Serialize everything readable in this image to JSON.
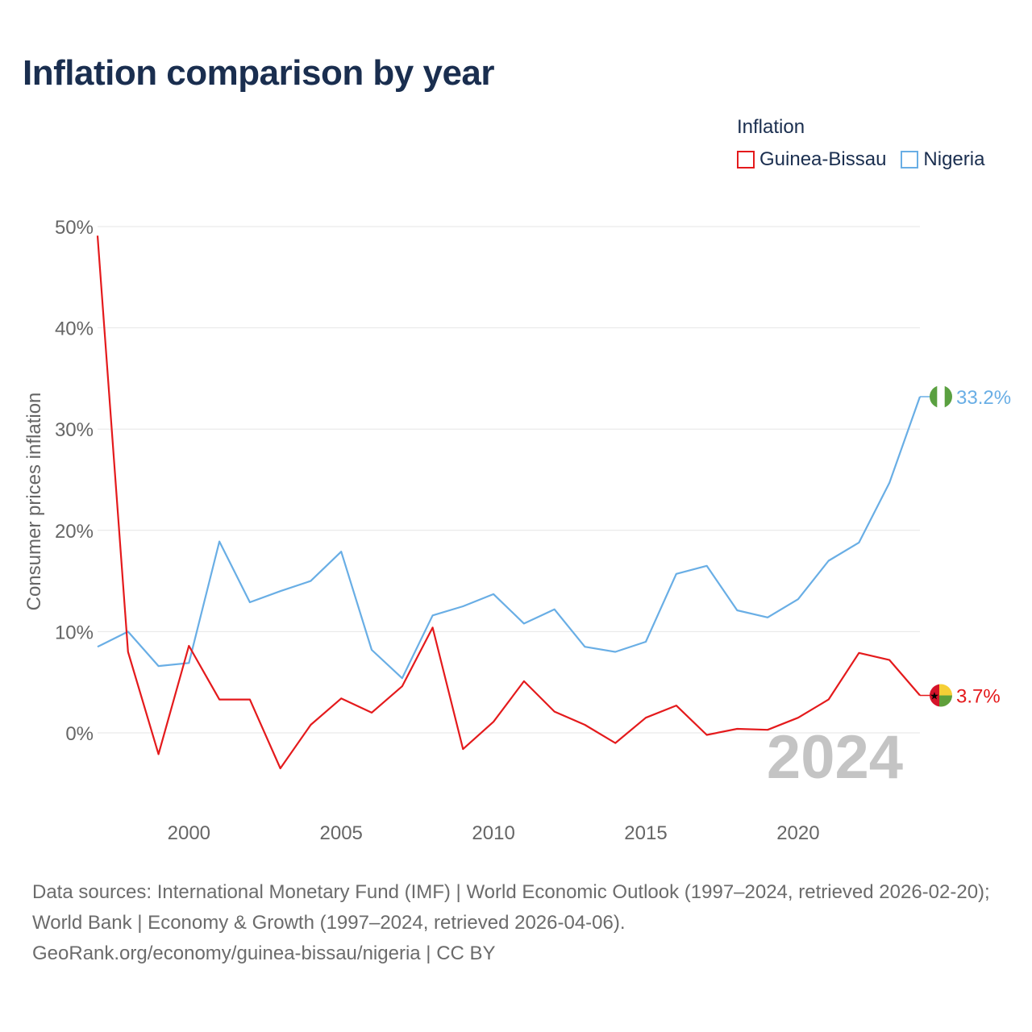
{
  "title": "Inflation comparison by year",
  "legend": {
    "title": "Inflation",
    "items": [
      "Guinea-Bissau",
      "Nigeria"
    ]
  },
  "footer": {
    "sources": "Data sources: International Monetary Fund (IMF) | World Economic Outlook (1997–2024, retrieved 2026-02-20); World Bank | Economy & Growth (1997–2024, retrieved 2026-04-06).",
    "credit": "GeoRank.org/economy/guinea-bissau/nigeria | CC BY"
  },
  "chart_data": {
    "type": "line",
    "title": "Inflation comparison by year",
    "xlabel": "",
    "ylabel": "Consumer prices inflation",
    "x": [
      1997,
      1998,
      1999,
      2000,
      2001,
      2002,
      2003,
      2004,
      2005,
      2006,
      2007,
      2008,
      2009,
      2010,
      2011,
      2012,
      2013,
      2014,
      2015,
      2016,
      2017,
      2018,
      2019,
      2020,
      2021,
      2022,
      2023,
      2024
    ],
    "xlim": [
      1997,
      2024
    ],
    "ylim": [
      -8,
      50
    ],
    "yticks": [
      0,
      10,
      20,
      30,
      40,
      50
    ],
    "ytick_labels": [
      "0%",
      "10%",
      "20%",
      "30%",
      "40%",
      "50%"
    ],
    "xticks": [
      2000,
      2005,
      2010,
      2015,
      2020
    ],
    "xtick_labels": [
      "2000",
      "2005",
      "2010",
      "2015",
      "2020"
    ],
    "grid": true,
    "year_watermark": "2024",
    "series": [
      {
        "name": "Guinea-Bissau",
        "color": "#e41a1c",
        "values": [
          49.1,
          8.0,
          -2.1,
          8.6,
          3.3,
          3.3,
          -3.5,
          0.8,
          3.4,
          2.0,
          4.6,
          10.4,
          -1.6,
          1.1,
          5.1,
          2.1,
          0.8,
          -1.0,
          1.5,
          2.7,
          -0.2,
          0.4,
          0.3,
          1.5,
          3.3,
          7.9,
          7.2,
          3.7
        ],
        "end_label": "3.7%",
        "flag": "guinea-bissau-flag-icon"
      },
      {
        "name": "Nigeria",
        "color": "#69aee5",
        "values": [
          8.5,
          10.0,
          6.6,
          6.9,
          18.9,
          12.9,
          14.0,
          15.0,
          17.9,
          8.2,
          5.4,
          11.6,
          12.5,
          13.7,
          10.8,
          12.2,
          8.5,
          8.0,
          9.0,
          15.7,
          16.5,
          12.1,
          11.4,
          13.2,
          17.0,
          18.8,
          24.7,
          33.2
        ],
        "end_label": "33.2%",
        "flag": "nigeria-flag-icon"
      }
    ]
  }
}
